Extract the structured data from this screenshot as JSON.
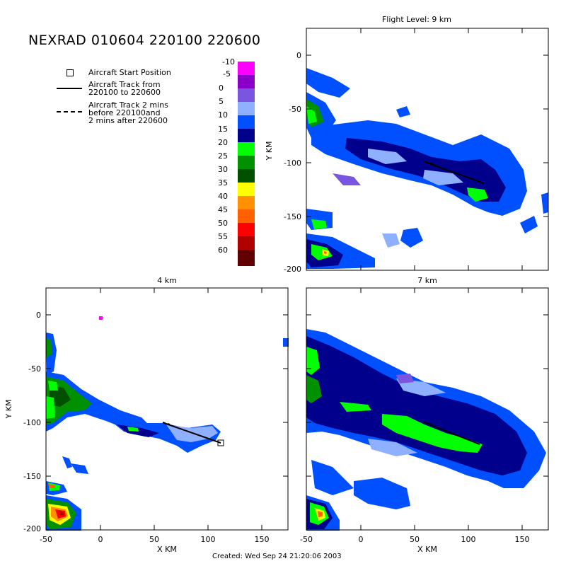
{
  "header": {
    "title": "NEXRAD 010604 220100 220600"
  },
  "legend": {
    "start": "Aircraft Start Position",
    "track": [
      "Aircraft Track from",
      "220100 to 220600"
    ],
    "dashed": [
      "Aircraft Track 2 mins",
      "before 220100and",
      "2 mins after 220600"
    ]
  },
  "colorbar": {
    "levels": [
      "-10",
      "-5",
      "0",
      "5",
      "10",
      "15",
      "20",
      "25",
      "30",
      "35",
      "40",
      "45",
      "50",
      "55",
      "60"
    ],
    "colors": [
      "#ff00ff",
      "#8a00c8",
      "#7a55e0",
      "#8fb0ff",
      "#0050ff",
      "#00008c",
      "#00ff00",
      "#009000",
      "#005000",
      "#ffff00",
      "#ff9000",
      "#ff6000",
      "#ff0000",
      "#b00000",
      "#600000"
    ]
  },
  "footer": {
    "created": "Created: Wed Sep 24 21:20:06 2003"
  },
  "panels": [
    {
      "id": "9km",
      "title": "Flight Level: 9 km"
    },
    {
      "id": "4km",
      "title": "4 km"
    },
    {
      "id": "7km",
      "title": "7 km"
    }
  ],
  "axes": {
    "xlabel": "X KM",
    "ylabel": "Y KM",
    "xticks": [
      "-50",
      "0",
      "50",
      "100",
      "150"
    ],
    "yticks": [
      "0",
      "-50",
      "-100",
      "-150",
      "-200"
    ]
  }
}
